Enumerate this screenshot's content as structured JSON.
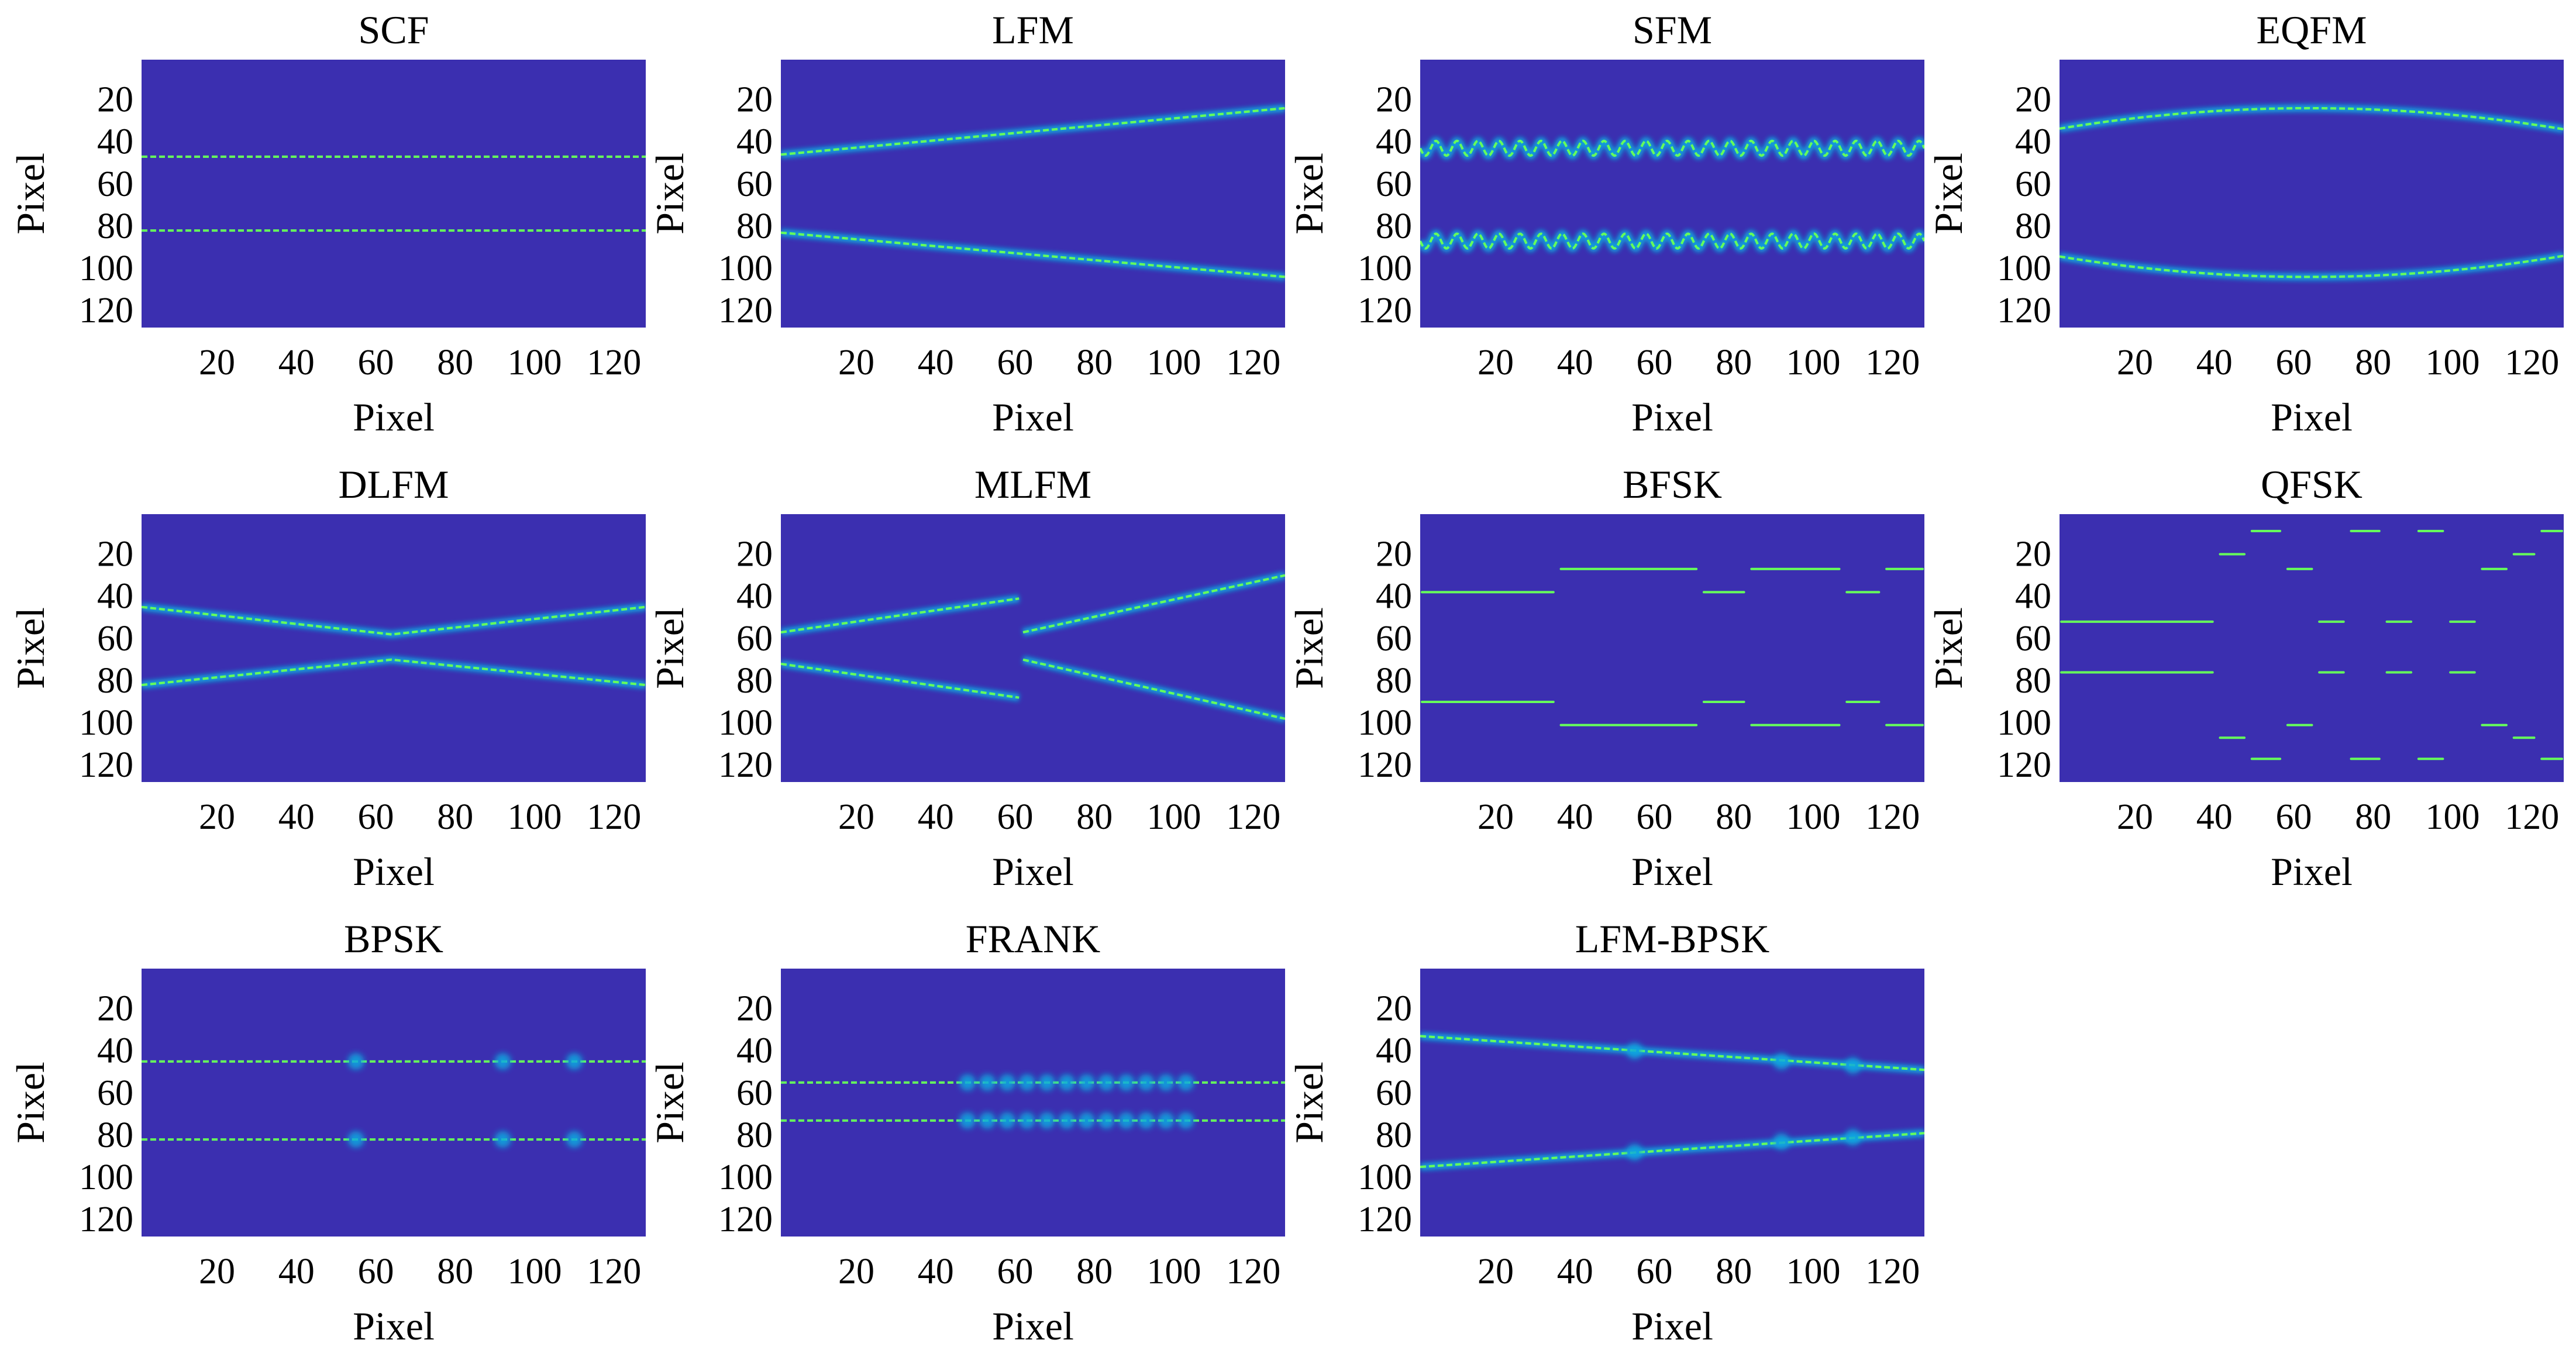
{
  "colors": {
    "background": "#3b2fb0",
    "low": "#3e26a8",
    "mid": "#0fa8e0",
    "high": "#66ff5a",
    "axis_text": "#000000"
  },
  "chart_data": [
    {
      "type": "heatmap",
      "title": "SCF",
      "xlabel": "Pixel",
      "ylabel": "Pixel",
      "xlim": [
        1,
        128
      ],
      "ylim": [
        1,
        128
      ],
      "y_reversed": true,
      "xticks": [
        20,
        40,
        60,
        80,
        100,
        120
      ],
      "yticks": [
        20,
        40,
        60,
        80,
        100,
        120
      ],
      "traces": [
        {
          "points": [
            [
              1,
              47
            ],
            [
              128,
              47
            ]
          ]
        },
        {
          "points": [
            [
              1,
              82
            ],
            [
              128,
              82
            ]
          ]
        }
      ],
      "markers": []
    },
    {
      "type": "heatmap",
      "title": "LFM",
      "xlabel": "Pixel",
      "ylabel": "Pixel",
      "xlim": [
        1,
        128
      ],
      "ylim": [
        1,
        128
      ],
      "y_reversed": true,
      "xticks": [
        20,
        40,
        60,
        80,
        100,
        120
      ],
      "yticks": [
        20,
        40,
        60,
        80,
        100,
        120
      ],
      "traces": [
        {
          "points": [
            [
              1,
              46
            ],
            [
              128,
              24
            ]
          ]
        },
        {
          "points": [
            [
              1,
              83
            ],
            [
              128,
              104
            ]
          ]
        }
      ],
      "markers": []
    },
    {
      "type": "heatmap",
      "title": "SFM",
      "xlabel": "Pixel",
      "ylabel": "Pixel",
      "xlim": [
        1,
        128
      ],
      "ylim": [
        1,
        128
      ],
      "y_reversed": true,
      "xticks": [
        20,
        40,
        60,
        80,
        100,
        120
      ],
      "yticks": [
        20,
        40,
        60,
        80,
        100,
        120
      ],
      "traces": [
        {
          "sine": {
            "center": 43,
            "amplitude": 3.5,
            "cycles": 24
          }
        },
        {
          "sine": {
            "center": 87,
            "amplitude": 3.5,
            "cycles": 24
          }
        }
      ],
      "markers": []
    },
    {
      "type": "heatmap",
      "title": "EQFM",
      "xlabel": "Pixel",
      "ylabel": "Pixel",
      "xlim": [
        1,
        128
      ],
      "ylim": [
        1,
        128
      ],
      "y_reversed": true,
      "xticks": [
        20,
        40,
        60,
        80,
        100,
        120
      ],
      "yticks": [
        20,
        40,
        60,
        80,
        100,
        120
      ],
      "traces": [
        {
          "quad": {
            "vertex_x": 64,
            "vertex_y": 24,
            "end_y": 34
          }
        },
        {
          "quad": {
            "vertex_x": 64,
            "vertex_y": 104,
            "end_y": 94
          }
        }
      ],
      "markers": []
    },
    {
      "type": "heatmap",
      "title": "DLFM",
      "xlabel": "Pixel",
      "ylabel": "Pixel",
      "xlim": [
        1,
        128
      ],
      "ylim": [
        1,
        128
      ],
      "y_reversed": true,
      "xticks": [
        20,
        40,
        60,
        80,
        100,
        120
      ],
      "yticks": [
        20,
        40,
        60,
        80,
        100,
        120
      ],
      "traces": [
        {
          "points": [
            [
              1,
              45
            ],
            [
              64,
              58
            ],
            [
              128,
              45
            ]
          ]
        },
        {
          "points": [
            [
              1,
              82
            ],
            [
              64,
              70
            ],
            [
              128,
              82
            ]
          ]
        }
      ],
      "markers": []
    },
    {
      "type": "heatmap",
      "title": "MLFM",
      "xlabel": "Pixel",
      "ylabel": "Pixel",
      "xlim": [
        1,
        128
      ],
      "ylim": [
        1,
        128
      ],
      "y_reversed": true,
      "xticks": [
        20,
        40,
        60,
        80,
        100,
        120
      ],
      "yticks": [
        20,
        40,
        60,
        80,
        100,
        120
      ],
      "traces": [
        {
          "points": [
            [
              1,
              57
            ],
            [
              61,
              41
            ]
          ]
        },
        {
          "points": [
            [
              1,
              72
            ],
            [
              61,
              88
            ]
          ]
        },
        {
          "points": [
            [
              62,
              57
            ],
            [
              128,
              30
            ]
          ]
        },
        {
          "points": [
            [
              62,
              70
            ],
            [
              128,
              98
            ]
          ]
        }
      ],
      "markers": []
    },
    {
      "type": "heatmap",
      "title": "BFSK",
      "xlabel": "Pixel",
      "ylabel": "Pixel",
      "xlim": [
        1,
        128
      ],
      "ylim": [
        1,
        128
      ],
      "y_reversed": true,
      "xticks": [
        20,
        40,
        60,
        80,
        100,
        120
      ],
      "yticks": [
        20,
        40,
        60,
        80,
        100,
        120
      ],
      "traces": [
        {
          "segments": [
            [
              1,
              35,
              38
            ],
            [
              36,
              71,
              27
            ],
            [
              72,
              83,
              38
            ],
            [
              84,
              107,
              27
            ],
            [
              108,
              117,
              38
            ],
            [
              118,
              128,
              27
            ]
          ]
        },
        {
          "segments": [
            [
              1,
              35,
              90
            ],
            [
              36,
              71,
              101
            ],
            [
              72,
              83,
              90
            ],
            [
              84,
              107,
              101
            ],
            [
              108,
              117,
              90
            ],
            [
              118,
              128,
              101
            ]
          ]
        }
      ],
      "markers": []
    },
    {
      "type": "heatmap",
      "title": "QFSK",
      "xlabel": "Pixel",
      "ylabel": "Pixel",
      "xlim": [
        1,
        128
      ],
      "ylim": [
        1,
        128
      ],
      "y_reversed": true,
      "xticks": [
        20,
        40,
        60,
        80,
        100,
        120
      ],
      "yticks": [
        20,
        40,
        60,
        80,
        100,
        120
      ],
      "traces": [
        {
          "segments": [
            [
              1,
              40,
              52
            ],
            [
              41,
              48,
              20
            ],
            [
              49,
              57,
              9
            ],
            [
              58,
              65,
              27
            ],
            [
              66,
              73,
              52
            ],
            [
              74,
              82,
              9
            ],
            [
              83,
              90,
              52
            ],
            [
              91,
              98,
              9
            ],
            [
              99,
              106,
              52
            ],
            [
              107,
              114,
              27
            ],
            [
              115,
              121,
              20
            ],
            [
              122,
              128,
              9
            ]
          ]
        },
        {
          "segments": [
            [
              1,
              40,
              76
            ],
            [
              41,
              48,
              107
            ],
            [
              49,
              57,
              117
            ],
            [
              58,
              65,
              101
            ],
            [
              66,
              73,
              76
            ],
            [
              74,
              82,
              117
            ],
            [
              83,
              90,
              76
            ],
            [
              91,
              98,
              117
            ],
            [
              99,
              106,
              76
            ],
            [
              107,
              114,
              101
            ],
            [
              115,
              121,
              107
            ],
            [
              122,
              128,
              117
            ]
          ]
        }
      ],
      "markers": []
    },
    {
      "type": "heatmap",
      "title": "BPSK",
      "xlabel": "Pixel",
      "ylabel": "Pixel",
      "xlim": [
        1,
        128
      ],
      "ylim": [
        1,
        128
      ],
      "y_reversed": true,
      "xticks": [
        20,
        40,
        60,
        80,
        100,
        120
      ],
      "yticks": [
        20,
        40,
        60,
        80,
        100,
        120
      ],
      "traces": [
        {
          "points": [
            [
              1,
              45
            ],
            [
              128,
              45
            ]
          ]
        },
        {
          "points": [
            [
              1,
              82
            ],
            [
              128,
              82
            ]
          ]
        }
      ],
      "markers": [
        [
          55,
          45
        ],
        [
          92,
          45
        ],
        [
          110,
          45
        ],
        [
          55,
          82
        ],
        [
          92,
          82
        ],
        [
          110,
          82
        ]
      ]
    },
    {
      "type": "heatmap",
      "title": "FRANK",
      "xlabel": "Pixel",
      "ylabel": "Pixel",
      "xlim": [
        1,
        128
      ],
      "ylim": [
        1,
        128
      ],
      "y_reversed": true,
      "xticks": [
        20,
        40,
        60,
        80,
        100,
        120
      ],
      "yticks": [
        20,
        40,
        60,
        80,
        100,
        120
      ],
      "traces": [
        {
          "points": [
            [
              1,
              55
            ],
            [
              128,
              55
            ]
          ]
        },
        {
          "points": [
            [
              1,
              73
            ],
            [
              128,
              73
            ]
          ]
        }
      ],
      "markers": [
        [
          48,
          55
        ],
        [
          53,
          55
        ],
        [
          58,
          55
        ],
        [
          63,
          55
        ],
        [
          68,
          55
        ],
        [
          73,
          55
        ],
        [
          78,
          55
        ],
        [
          83,
          55
        ],
        [
          88,
          55
        ],
        [
          93,
          55
        ],
        [
          98,
          55
        ],
        [
          103,
          55
        ],
        [
          48,
          73
        ],
        [
          53,
          73
        ],
        [
          58,
          73
        ],
        [
          63,
          73
        ],
        [
          68,
          73
        ],
        [
          73,
          73
        ],
        [
          78,
          73
        ],
        [
          83,
          73
        ],
        [
          88,
          73
        ],
        [
          93,
          73
        ],
        [
          98,
          73
        ],
        [
          103,
          73
        ]
      ]
    },
    {
      "type": "heatmap",
      "title": "LFM-BPSK",
      "xlabel": "Pixel",
      "ylabel": "Pixel",
      "xlim": [
        1,
        128
      ],
      "ylim": [
        1,
        128
      ],
      "y_reversed": true,
      "xticks": [
        20,
        40,
        60,
        80,
        100,
        120
      ],
      "yticks": [
        20,
        40,
        60,
        80,
        100,
        120
      ],
      "traces": [
        {
          "points": [
            [
              1,
              33
            ],
            [
              128,
              49
            ]
          ]
        },
        {
          "points": [
            [
              1,
              95
            ],
            [
              128,
              79
            ]
          ]
        }
      ],
      "markers": [
        [
          55,
          40
        ],
        [
          92,
          45
        ],
        [
          110,
          47
        ],
        [
          55,
          88
        ],
        [
          92,
          83
        ],
        [
          110,
          81
        ]
      ]
    }
  ]
}
